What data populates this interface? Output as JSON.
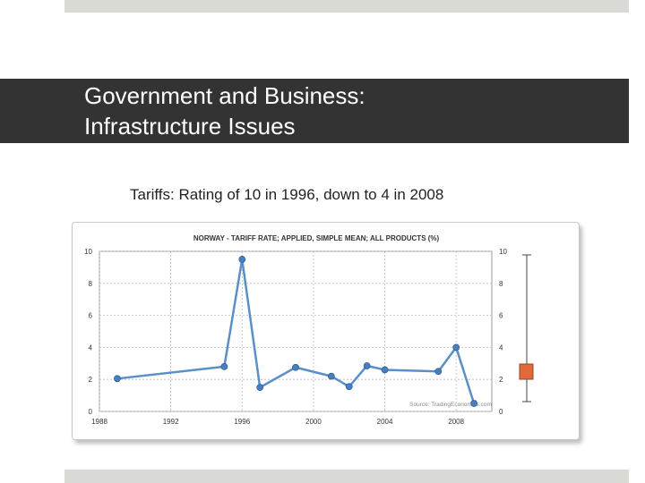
{
  "slide": {
    "title": "Government and Business:\nInfrastructure Issues",
    "subtitle": "Tariffs: Rating of 10 in 1996, down to 4 in 2008"
  },
  "colors": {
    "line": "#5b8fc9",
    "point": "#4a7fbf",
    "title_band": "#333333",
    "marker": "#e06a3a"
  },
  "chart_data": {
    "type": "line",
    "title": "NORWAY - TARIFF RATE; APPLIED, SIMPLE MEAN; ALL PRODUCTS (%)",
    "source": "Source: TradingEconomics.com",
    "xlabel": "",
    "ylabel": "",
    "xlim": [
      1988,
      2010
    ],
    "ylim": [
      0,
      10
    ],
    "xticks": [
      "1988",
      "1992",
      "1996",
      "2000",
      "2004",
      "2008"
    ],
    "yticks": [
      "0",
      "2",
      "4",
      "6",
      "8",
      "10"
    ],
    "grid": true,
    "series": [
      {
        "x": [
          1989,
          1995,
          1996,
          1997,
          1999,
          2001,
          2002,
          2003,
          2004,
          2007,
          2008,
          2009
        ],
        "y": [
          2.05,
          2.8,
          9.5,
          1.5,
          2.75,
          2.2,
          1.55,
          2.85,
          2.6,
          2.5,
          4.0,
          0.5
        ]
      }
    ]
  }
}
